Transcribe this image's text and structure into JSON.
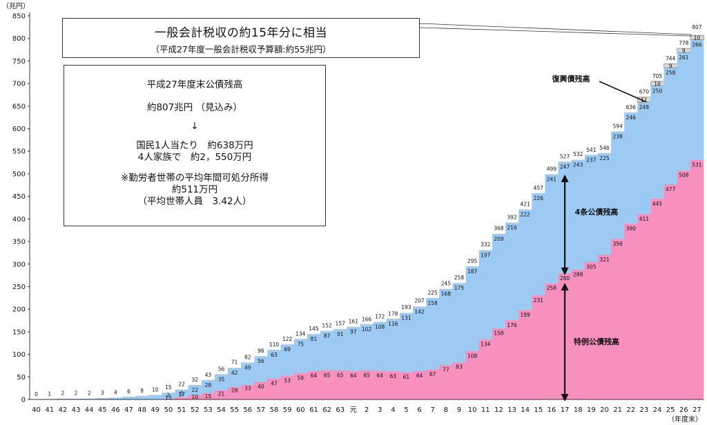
{
  "chart_data": {
    "type": "bar",
    "yunit": "（兆円）",
    "xunit": "（年度末）",
    "ylim": [
      0,
      850
    ],
    "yticks": [
      0,
      50,
      100,
      150,
      200,
      250,
      300,
      350,
      400,
      450,
      500,
      550,
      600,
      650,
      700,
      750,
      800,
      850
    ],
    "categories": [
      "40",
      "41",
      "42",
      "43",
      "44",
      "45",
      "46",
      "47",
      "48",
      "49",
      "50",
      "51",
      "52",
      "53",
      "54",
      "55",
      "56",
      "57",
      "58",
      "59",
      "60",
      "61",
      "62",
      "63",
      "元",
      "2",
      "3",
      "4",
      "5",
      "6",
      "7",
      "8",
      "9",
      "10",
      "11",
      "12",
      "13",
      "14",
      "15",
      "16",
      "17",
      "18",
      "19",
      "20",
      "21",
      "22",
      "23",
      "24",
      "25",
      "26",
      "27"
    ],
    "series": [
      {
        "name": "特例公債残高",
        "color": "#f78fbf",
        "values": [
          0,
          0,
          0,
          0,
          0,
          0,
          0,
          0,
          0,
          0,
          2,
          5,
          10,
          15,
          21,
          28,
          33,
          40,
          47,
          53,
          59,
          64,
          65,
          65,
          64,
          65,
          64,
          63,
          61,
          64,
          67,
          77,
          83,
          108,
          134,
          158,
          176,
          199,
          231,
          258,
          280,
          288,
          305,
          321,
          356,
          390,
          411,
          445,
          477,
          508,
          531
        ]
      },
      {
        "name": "4条公債残高",
        "color": "#9ccaf3",
        "values": [
          0,
          1,
          2,
          2,
          2,
          3,
          4,
          6,
          8,
          10,
          13,
          17,
          22,
          28,
          35,
          42,
          49,
          56,
          63,
          69,
          75,
          81,
          87,
          91,
          97,
          102,
          108,
          116,
          131,
          142,
          158,
          168,
          175,
          187,
          197,
          209,
          216,
          222,
          226,
          241,
          247,
          243,
          237,
          225,
          238,
          246,
          248,
          250,
          258,
          261,
          266
        ]
      },
      {
        "name": "復興債残高",
        "color": "#d8d8d8",
        "values": [
          0,
          0,
          0,
          0,
          0,
          0,
          0,
          0,
          0,
          0,
          0,
          0,
          0,
          0,
          0,
          0,
          0,
          0,
          0,
          0,
          0,
          0,
          0,
          0,
          0,
          0,
          0,
          0,
          0,
          0,
          0,
          0,
          0,
          0,
          0,
          0,
          0,
          0,
          0,
          0,
          0,
          0,
          0,
          0,
          0,
          0,
          11,
          10,
          9,
          9,
          10
        ]
      }
    ],
    "totals": [
      0,
      1,
      2,
      2,
      2,
      3,
      4,
      6,
      8,
      10,
      15,
      22,
      32,
      43,
      56,
      71,
      82,
      96,
      110,
      122,
      134,
      145,
      152,
      157,
      161,
      166,
      172,
      178,
      193,
      207,
      225,
      245,
      258,
      295,
      332,
      368,
      392,
      421,
      457,
      499,
      527,
      532,
      541,
      546,
      594,
      636,
      670,
      705,
      744,
      778,
      807
    ],
    "annotations": {
      "fukko": "復興債残高",
      "kenzetsu": "4条公債残高",
      "tokurei": "特例公債残高"
    }
  },
  "box1": {
    "line1": "一般会計税収の約15年分に相当",
    "line2": "（平成27年度一般会計税収予算額:約55兆円）"
  },
  "box2": {
    "line1": "平成27年度末公債残高",
    "line2": "約807兆円 （見込み）",
    "arrow": "↓",
    "line3": "国民1人当たり　約638万円",
    "line4": "4人家族で　約2，550万円",
    "line5": "※勤労者世帯の平均年間可処分所得",
    "line6": "約511万円",
    "line7": "（平均世帯人員　3.42人）"
  }
}
